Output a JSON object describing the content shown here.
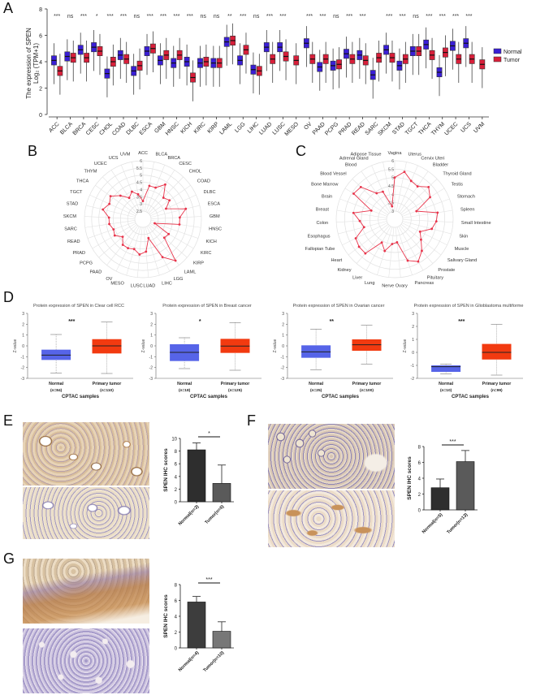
{
  "figure": {
    "panel_labels": [
      "A",
      "B",
      "C",
      "D",
      "E",
      "F",
      "G"
    ]
  },
  "chart_data": [
    {
      "id": "A",
      "type": "box",
      "ylabel": "The expression of SPEN Log2 (TPM+1)",
      "ylabel_line1": "The expression of SPEN",
      "ylabel_line2": "Log₂ (TPM+1)",
      "ylim": [
        0,
        8
      ],
      "yticks": [
        0,
        2,
        4,
        6,
        8
      ],
      "legend": [
        {
          "name": "Normal",
          "color": "#3a1fd6"
        },
        {
          "name": "Tumor",
          "color": "#d81f3a"
        }
      ],
      "categories": [
        "ACC",
        "BLCA",
        "BRCA",
        "CESC",
        "CHOL",
        "COAD",
        "DLBC",
        "ESCA",
        "GBM",
        "HNSC",
        "KICH",
        "KIRC",
        "KIRP",
        "LAML",
        "LGG",
        "LIHC",
        "LUAD",
        "LUSC",
        "MESO",
        "OV",
        "PAAD",
        "PCPG",
        "PRAD",
        "READ",
        "SARC",
        "SKCM",
        "STAD",
        "TGCT",
        "THCA",
        "THYM",
        "UCEC",
        "UCS",
        "UVM"
      ],
      "significance": [
        "***",
        "ns",
        "***",
        "*",
        "***",
        "***",
        "ns",
        "***",
        "***",
        "***",
        "***",
        "ns",
        "ns",
        "**",
        "***",
        "ns",
        "***",
        "***",
        "",
        "***",
        "***",
        "ns",
        "***",
        "***",
        "",
        "***",
        "***",
        "ns",
        "***",
        "***",
        "***",
        "***",
        ""
      ],
      "normal_median": [
        4.1,
        4.4,
        4.9,
        5.1,
        3.1,
        4.5,
        3.3,
        4.8,
        4.1,
        3.9,
        4.0,
        3.9,
        3.9,
        5.5,
        4.1,
        3.4,
        5.1,
        5.1,
        null,
        5.4,
        3.6,
        3.7,
        4.6,
        4.5,
        3.0,
        4.9,
        3.7,
        4.8,
        5.3,
        3.2,
        5.2,
        5.4,
        null
      ],
      "tumor_median": [
        3.3,
        4.3,
        4.3,
        4.8,
        4.0,
        4.2,
        3.7,
        5.0,
        4.5,
        4.5,
        2.8,
        4.0,
        3.9,
        5.6,
        4.9,
        3.3,
        4.2,
        4.4,
        4.1,
        4.2,
        4.2,
        3.8,
        4.2,
        4.1,
        4.3,
        4.3,
        4.2,
        4.8,
        4.5,
        4.7,
        4.2,
        4.2,
        3.8
      ]
    },
    {
      "id": "B",
      "type": "radar",
      "series": [
        {
          "name": "tumor",
          "color": "#e8334a"
        }
      ],
      "rticks": [
        "2.5",
        "3",
        "3.5",
        "4",
        "4.5",
        "5",
        "5.5",
        "6"
      ],
      "rlim": [
        2.5,
        6
      ],
      "categories": [
        "ACC",
        "BLCA",
        "BRCA",
        "CESC",
        "CHOL",
        "COAD",
        "DLBC",
        "ESCA",
        "GBM",
        "HNSC",
        "KICH",
        "KIRC",
        "KIRP",
        "LAML",
        "LGG",
        "LIHC",
        "LUAD",
        "LUSC",
        "MESO",
        "OV",
        "PAAD",
        "PCPG",
        "PRAD",
        "READ",
        "SARC",
        "SKCM",
        "STAD",
        "TGCT",
        "THCA",
        "THYM",
        "UCEC",
        "UCS",
        "UVM"
      ],
      "values": [
        3.2,
        4.3,
        4.3,
        4.8,
        4.0,
        4.2,
        3.7,
        5.0,
        4.5,
        4.5,
        2.8,
        4.0,
        3.9,
        5.6,
        4.9,
        3.3,
        4.2,
        4.4,
        4.1,
        4.2,
        4.2,
        3.8,
        4.2,
        4.1,
        4.3,
        4.3,
        4.8,
        4.5,
        4.7,
        4.2,
        3.7,
        4.0,
        3.7
      ]
    },
    {
      "id": "C",
      "type": "radar",
      "series": [
        {
          "name": "normal",
          "color": "#e8334a"
        }
      ],
      "rticks": [
        "3",
        "3.5",
        "4",
        "4.5",
        "5",
        "5.5",
        "6"
      ],
      "rlim": [
        3,
        6
      ],
      "categories": [
        "Vagina",
        "Uterus",
        "Cervix Uteri",
        "Bladder",
        "Thyroid Gland",
        "Testis",
        "Stomach",
        "Spleen",
        "Small Intestine",
        "Skin",
        "Muscle",
        "Salivary Gland",
        "Prostate",
        "Pituitary",
        "Pancreas",
        "Ovary",
        "Nerve",
        "Lung",
        "Liver",
        "Kidney",
        "Heart",
        "Fallopian Tube",
        "Esophagus",
        "Colon",
        "Breast",
        "Brain",
        "Bone Marrow",
        "Blood Vessel",
        "Blood",
        "Adrenal Gland",
        "Adipose Tissue"
      ],
      "values": [
        5.0,
        5.4,
        5.0,
        4.9,
        5.3,
        5.0,
        3.9,
        5.1,
        5.0,
        4.8,
        4.2,
        4.5,
        5.0,
        5.4,
        5.1,
        3.9,
        4.0,
        4.5,
        4.1,
        5.2,
        5.2,
        5.1,
        4.4,
        4.6,
        5.0,
        4.0,
        5.4,
        5.3,
        4.4,
        4.3,
        3.3
      ]
    },
    {
      "id": "D1",
      "type": "box",
      "title": "Protein expression of SPEN in Clear cell RCC",
      "xlabel": "CPTAC samples",
      "ylabel": "Z-value",
      "ylim": [
        -3,
        3
      ],
      "significance": "***",
      "groups": [
        {
          "name": "Normal",
          "n": "(n=84)",
          "color": "#5664e8",
          "min": -2.5,
          "q1": -1.3,
          "median": -0.85,
          "q3": -0.35,
          "max": 1.05
        },
        {
          "name": "Primary tumor",
          "n": "(n=110)",
          "color": "#f23a10",
          "min": -2.55,
          "q1": -0.7,
          "median": 0.0,
          "q3": 0.62,
          "max": 2.2
        }
      ]
    },
    {
      "id": "D2",
      "type": "box",
      "title": "Protein expression of SPEN in Breast cancer",
      "xlabel": "CPTAC samples",
      "ylabel": "Z-value",
      "ylim": [
        -3,
        3
      ],
      "significance": "*",
      "groups": [
        {
          "name": "Normal",
          "n": "(n=18)",
          "color": "#5664e8",
          "min": -2.1,
          "q1": -1.4,
          "median": -0.6,
          "q3": 0.15,
          "max": 0.75
        },
        {
          "name": "Primary tumor",
          "n": "(n=125)",
          "color": "#f23a10",
          "min": -2.25,
          "q1": -0.65,
          "median": -0.02,
          "q3": 0.65,
          "max": 2.15
        }
      ]
    },
    {
      "id": "D3",
      "type": "box",
      "title": "Protein expression of SPEN in Ovarian cancer",
      "xlabel": "CPTAC samples",
      "ylabel": "Z-value",
      "ylim": [
        -3,
        3
      ],
      "significance": "**",
      "groups": [
        {
          "name": "Normal",
          "n": "(n=25)",
          "color": "#5664e8",
          "min": -2.2,
          "q1": -1.1,
          "median": -0.55,
          "q3": 0.05,
          "max": 1.55
        },
        {
          "name": "Primary tumor",
          "n": "(n=100)",
          "color": "#f23a10",
          "min": -1.7,
          "q1": -0.45,
          "median": 0.1,
          "q3": 0.6,
          "max": 1.9
        }
      ]
    },
    {
      "id": "D4",
      "type": "box",
      "title": "Protein expression of SPEN in Glioblastoma multiforme",
      "xlabel": "CPTAC samples",
      "ylabel": "Z-value",
      "ylim": [
        -2,
        3
      ],
      "significance": "***",
      "groups": [
        {
          "name": "Normal",
          "n": "(n=10)",
          "color": "#5664e8",
          "min": -1.65,
          "q1": -1.5,
          "median": -1.1,
          "q3": -1.0,
          "max": -0.9
        },
        {
          "name": "Primary tumor",
          "n": "(n=99)",
          "color": "#f23a10",
          "min": -1.75,
          "q1": -0.55,
          "median": 0.0,
          "q3": 0.65,
          "max": 2.15
        }
      ]
    },
    {
      "id": "E",
      "type": "bar",
      "ylabel": "SPEN IHC scores",
      "ylim": [
        0,
        10
      ],
      "yticks": [
        0,
        2,
        4,
        6,
        8,
        10
      ],
      "categories": [
        "Normal(n=3)",
        "Tumor(n=6)"
      ],
      "values": [
        8.2,
        2.9
      ],
      "errors": [
        1.1,
        2.9
      ],
      "colors": [
        "#2e2e2e",
        "#5a5a5a"
      ],
      "significance": "*"
    },
    {
      "id": "F",
      "type": "bar",
      "ylabel": "SPEN IHC scores",
      "ylim": [
        0,
        8
      ],
      "yticks": [
        0,
        2,
        4,
        6,
        8
      ],
      "categories": [
        "Normal(n=5)",
        "Tumor(n=13)"
      ],
      "values": [
        2.8,
        6.1
      ],
      "errors": [
        1.1,
        1.4
      ],
      "colors": [
        "#2e2e2e",
        "#5a5a5a"
      ],
      "significance": "***"
    },
    {
      "id": "G",
      "type": "bar",
      "ylabel": "SPEN IHC scores",
      "ylim": [
        0,
        8
      ],
      "yticks": [
        0,
        2,
        4,
        6,
        8
      ],
      "categories": [
        "Normal(n=4)",
        "Tumor(n=10)"
      ],
      "values": [
        5.8,
        2.1
      ],
      "errors": [
        0.7,
        1.2
      ],
      "colors": [
        "#3d3d3d",
        "#777777"
      ],
      "significance": "***"
    }
  ],
  "labels": {
    "legend_normal": "Normal",
    "legend_tumor": "Tumor",
    "radar_b_legend": "tumor",
    "radar_c_legend": "normal",
    "cptac": "CPTAC samples",
    "zvalue": "Z-value",
    "ihc_ylabel": "SPEN IHC scores"
  }
}
